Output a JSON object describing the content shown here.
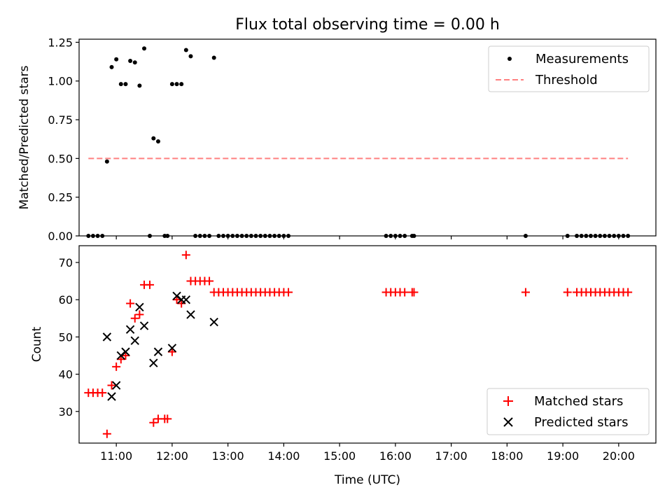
{
  "title": "Flux total observing time = 0.00 h",
  "chart_data": [
    {
      "type": "scatter",
      "panel": "top",
      "ylabel": "Matched/Predicted stars",
      "xlabel": "",
      "xlim": [
        "10:20",
        "20:40"
      ],
      "ylim": [
        0,
        1.27
      ],
      "yticks": [
        0,
        0.25,
        0.5,
        0.75,
        1.0,
        1.25
      ],
      "ytick_labels": [
        "0.00",
        "0.25",
        "0.50",
        "0.75",
        "1.00",
        "1.25"
      ],
      "xticks": [
        "11:00",
        "12:00",
        "13:00",
        "14:00",
        "15:00",
        "16:00",
        "17:00",
        "18:00",
        "19:00",
        "20:00"
      ],
      "legend": {
        "position": "top-right",
        "entries": [
          "Measurements",
          "Threshold"
        ]
      },
      "threshold": {
        "value": 0.5,
        "x": [
          "10:30",
          "20:10"
        ],
        "color": "#ff8080",
        "style": "dashed"
      },
      "series": [
        {
          "name": "Measurements",
          "color": "#000000",
          "marker": "dot",
          "points": [
            [
              "10:30",
              0
            ],
            [
              "10:35",
              0
            ],
            [
              "10:40",
              0
            ],
            [
              "10:45",
              0
            ],
            [
              "10:50",
              0.48
            ],
            [
              "10:55",
              1.09
            ],
            [
              "11:00",
              1.14
            ],
            [
              "11:05",
              0.98
            ],
            [
              "11:10",
              0.98
            ],
            [
              "11:15",
              1.13
            ],
            [
              "11:20",
              1.12
            ],
            [
              "11:25",
              0.97
            ],
            [
              "11:30",
              1.21
            ],
            [
              "11:36",
              0
            ],
            [
              "11:40",
              0.63
            ],
            [
              "11:45",
              0.61
            ],
            [
              "11:52",
              0
            ],
            [
              "11:55",
              0
            ],
            [
              "12:00",
              0.98
            ],
            [
              "12:05",
              0.98
            ],
            [
              "12:10",
              0.98
            ],
            [
              "12:15",
              1.2
            ],
            [
              "12:20",
              1.16
            ],
            [
              "12:25",
              0
            ],
            [
              "12:30",
              0
            ],
            [
              "12:35",
              0
            ],
            [
              "12:40",
              0
            ],
            [
              "12:45",
              1.15
            ],
            [
              "12:50",
              0
            ],
            [
              "12:55",
              0
            ],
            [
              "13:00",
              0
            ],
            [
              "13:05",
              0
            ],
            [
              "13:10",
              0
            ],
            [
              "13:15",
              0
            ],
            [
              "13:20",
              0
            ],
            [
              "13:25",
              0
            ],
            [
              "13:30",
              0
            ],
            [
              "13:35",
              0
            ],
            [
              "13:40",
              0
            ],
            [
              "13:45",
              0
            ],
            [
              "13:50",
              0
            ],
            [
              "13:55",
              0
            ],
            [
              "14:00",
              0
            ],
            [
              "14:05",
              0
            ],
            [
              "15:50",
              0
            ],
            [
              "15:55",
              0
            ],
            [
              "16:00",
              0
            ],
            [
              "16:05",
              0
            ],
            [
              "16:10",
              0
            ],
            [
              "16:18",
              0
            ],
            [
              "16:20",
              0
            ],
            [
              "18:20",
              0
            ],
            [
              "19:05",
              0
            ],
            [
              "19:15",
              0
            ],
            [
              "19:20",
              0
            ],
            [
              "19:25",
              0
            ],
            [
              "19:30",
              0
            ],
            [
              "19:35",
              0
            ],
            [
              "19:40",
              0
            ],
            [
              "19:45",
              0
            ],
            [
              "19:50",
              0
            ],
            [
              "19:55",
              0
            ],
            [
              "20:00",
              0
            ],
            [
              "20:05",
              0
            ],
            [
              "20:10",
              0
            ]
          ]
        }
      ]
    },
    {
      "type": "scatter",
      "panel": "bottom",
      "ylabel": "Count",
      "xlabel": "Time (UTC)",
      "xlim": [
        "10:20",
        "20:40"
      ],
      "ylim": [
        21.5,
        74.5
      ],
      "yticks": [
        30,
        40,
        50,
        60,
        70
      ],
      "ytick_labels": [
        "30",
        "40",
        "50",
        "60",
        "70"
      ],
      "xticks": [
        "11:00",
        "12:00",
        "13:00",
        "14:00",
        "15:00",
        "16:00",
        "17:00",
        "18:00",
        "19:00",
        "20:00"
      ],
      "xtick_labels": [
        "11:00",
        "12:00",
        "13:00",
        "14:00",
        "15:00",
        "16:00",
        "17:00",
        "18:00",
        "19:00",
        "20:00"
      ],
      "legend": {
        "position": "bottom-right",
        "entries": [
          "Matched stars",
          "Predicted stars"
        ]
      },
      "series": [
        {
          "name": "Matched stars",
          "color": "#ff0000",
          "marker": "plus",
          "points": [
            [
              "10:30",
              35
            ],
            [
              "10:35",
              35
            ],
            [
              "10:40",
              35
            ],
            [
              "10:45",
              35
            ],
            [
              "10:50",
              24
            ],
            [
              "10:55",
              37
            ],
            [
              "11:00",
              42
            ],
            [
              "11:05",
              44
            ],
            [
              "11:10",
              45
            ],
            [
              "11:15",
              59
            ],
            [
              "11:20",
              55
            ],
            [
              "11:25",
              56
            ],
            [
              "11:30",
              64
            ],
            [
              "11:36",
              64
            ],
            [
              "11:40",
              27
            ],
            [
              "11:45",
              28
            ],
            [
              "11:52",
              28
            ],
            [
              "11:55",
              28
            ],
            [
              "12:00",
              46
            ],
            [
              "12:05",
              60
            ],
            [
              "12:10",
              59
            ],
            [
              "12:15",
              72
            ],
            [
              "12:20",
              65
            ],
            [
              "12:25",
              65
            ],
            [
              "12:30",
              65
            ],
            [
              "12:35",
              65
            ],
            [
              "12:40",
              65
            ],
            [
              "12:45",
              62
            ],
            [
              "12:50",
              62
            ],
            [
              "12:55",
              62
            ],
            [
              "13:00",
              62
            ],
            [
              "13:05",
              62
            ],
            [
              "13:10",
              62
            ],
            [
              "13:15",
              62
            ],
            [
              "13:20",
              62
            ],
            [
              "13:25",
              62
            ],
            [
              "13:30",
              62
            ],
            [
              "13:35",
              62
            ],
            [
              "13:40",
              62
            ],
            [
              "13:45",
              62
            ],
            [
              "13:50",
              62
            ],
            [
              "13:55",
              62
            ],
            [
              "14:00",
              62
            ],
            [
              "14:05",
              62
            ],
            [
              "15:50",
              62
            ],
            [
              "15:55",
              62
            ],
            [
              "16:00",
              62
            ],
            [
              "16:05",
              62
            ],
            [
              "16:10",
              62
            ],
            [
              "16:18",
              62
            ],
            [
              "16:20",
              62
            ],
            [
              "18:20",
              62
            ],
            [
              "19:05",
              62
            ],
            [
              "19:15",
              62
            ],
            [
              "19:20",
              62
            ],
            [
              "19:25",
              62
            ],
            [
              "19:30",
              62
            ],
            [
              "19:35",
              62
            ],
            [
              "19:40",
              62
            ],
            [
              "19:45",
              62
            ],
            [
              "19:50",
              62
            ],
            [
              "19:55",
              62
            ],
            [
              "20:00",
              62
            ],
            [
              "20:05",
              62
            ],
            [
              "20:10",
              62
            ]
          ]
        },
        {
          "name": "Predicted stars",
          "color": "#000000",
          "marker": "x",
          "points": [
            [
              "10:50",
              50
            ],
            [
              "10:55",
              34
            ],
            [
              "11:00",
              37
            ],
            [
              "11:05",
              45
            ],
            [
              "11:10",
              46
            ],
            [
              "11:15",
              52
            ],
            [
              "11:20",
              49
            ],
            [
              "11:25",
              58
            ],
            [
              "11:30",
              53
            ],
            [
              "11:40",
              43
            ],
            [
              "11:45",
              46
            ],
            [
              "12:00",
              47
            ],
            [
              "12:05",
              61
            ],
            [
              "12:10",
              60
            ],
            [
              "12:15",
              60
            ],
            [
              "12:20",
              56
            ],
            [
              "12:45",
              54
            ]
          ]
        }
      ]
    }
  ]
}
